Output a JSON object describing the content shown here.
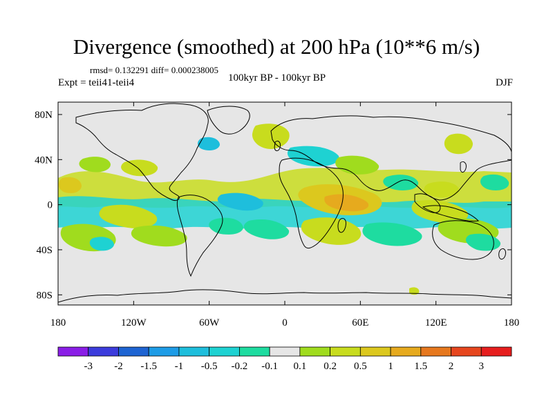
{
  "title": "Divergence (smoothed) at 200 hPa (10**6 m/s)",
  "stats": "rmsd= 0.132291 diff= 0.000238005",
  "experiment": "Expt = teii41-teii4",
  "period": "100kyr BP - 100kyr BP",
  "season": "DJF",
  "axes": {
    "lat_ticks": [
      {
        "value": 80,
        "label": "80N"
      },
      {
        "value": 40,
        "label": "40N"
      },
      {
        "value": 0,
        "label": "0"
      },
      {
        "value": -40,
        "label": "40S"
      },
      {
        "value": -80,
        "label": "80S"
      }
    ],
    "lon_ticks": [
      {
        "value": -180,
        "label": "180"
      },
      {
        "value": -120,
        "label": "120W"
      },
      {
        "value": -60,
        "label": "60W"
      },
      {
        "value": 0,
        "label": "0"
      },
      {
        "value": 60,
        "label": "60E"
      },
      {
        "value": 120,
        "label": "120E"
      },
      {
        "value": 180,
        "label": "180"
      }
    ]
  },
  "colorbar": {
    "colors": [
      "#8a1ee6",
      "#3c3cdc",
      "#1e64d2",
      "#1e9ce6",
      "#1ebedc",
      "#1ed2d2",
      "#1edca0",
      "#e6e6e6",
      "#a0dc1e",
      "#c8dc1e",
      "#dcc81e",
      "#e6aa1e",
      "#e6781e",
      "#e6461e",
      "#e61e1e"
    ],
    "labels": [
      "-3",
      "-2",
      "-1.5",
      "-1",
      "-0.5",
      "-0.2",
      "-0.1",
      "0.1",
      "0.2",
      "0.5",
      "1",
      "1.5",
      "2",
      "3"
    ]
  },
  "colors": {
    "background_field": "#e6e6e6",
    "positive_weak": "#a0dc1e",
    "positive_mid": "#c8dc1e",
    "positive_strong": "#dcc81e",
    "negative_weak": "#1edca0",
    "negative_mid": "#1ed2d2",
    "negative_strong": "#1ebedc"
  }
}
